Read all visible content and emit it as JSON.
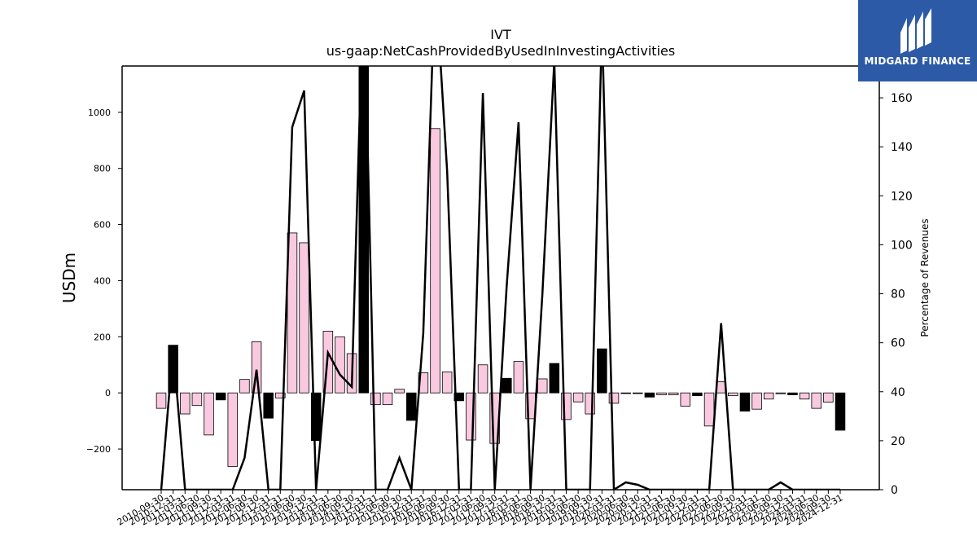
{
  "chart_data": {
    "type": "bar",
    "title": "IVT",
    "subtitle": "us-gaap:NetCashProvidedByUsedInInvestingActivities",
    "ylabel": "USDm",
    "y2label": "Percentage of Revenues",
    "ylim": [
      -345,
      1165
    ],
    "y2lim": [
      0,
      173
    ],
    "yticks": [
      -200,
      0,
      200,
      400,
      600,
      800,
      1000
    ],
    "y2ticks": [
      0,
      20,
      40,
      60,
      80,
      100,
      120,
      140,
      160
    ],
    "tick_labels": [
      "2010-09-30",
      "2010-12-31",
      "2011-03-31",
      "2011-06-30",
      "2011-09-30",
      "2011-12-31",
      "2012-03-31",
      "2012-06-30",
      "2012-09-30",
      "2012-12-31",
      "2013-03-31",
      "2013-06-30",
      "2013-09-30",
      "2013-12-31",
      "2014-03-31",
      "2014-06-30",
      "2014-09-30",
      "2014-12-31",
      "2015-03-31",
      "2015-06-30",
      "2015-09-30",
      "2015-12-31",
      "2016-03-31",
      "2016-06-30",
      "2016-09-30",
      "2016-12-31",
      "2017-03-31",
      "2017-06-30",
      "2017-09-30",
      "2017-12-31",
      "2018-03-31",
      "2018-06-30",
      "2018-09-30",
      "2018-12-31",
      "2019-03-31",
      "2019-06-30",
      "2019-09-30",
      "2019-12-31",
      "2020-03-31",
      "2020-06-30",
      "2020-09-30",
      "2020-12-31",
      "2021-03-31",
      "2021-06-30",
      "2021-09-30",
      "2021-12-31",
      "2022-03-31",
      "2022-06-30",
      "2022-09-30",
      "2022-12-31",
      "2023-03-31",
      "2023-06-30",
      "2023-09-30",
      "2023-12-31",
      "2024-03-31",
      "2024-06-30",
      "2024-09-30",
      "2024-12-31"
    ],
    "values": [
      -55,
      170,
      -75,
      -45,
      -150,
      -25,
      -262,
      48,
      182,
      -90,
      -18,
      570,
      535,
      -170,
      220,
      200,
      140,
      1165,
      -42,
      -42,
      13,
      -98,
      72,
      942,
      75,
      -28,
      -168,
      100,
      -180,
      52,
      112,
      -92,
      50,
      105,
      -95,
      -32,
      -75,
      157,
      -37,
      -2,
      -2,
      -15,
      -7,
      -7,
      -47,
      -10,
      -118,
      40,
      -10,
      -65,
      -58,
      -22,
      -3,
      -7,
      -22,
      -55,
      -33,
      -133
    ],
    "bar_colors": [
      "pink",
      "black",
      "pink",
      "pink",
      "pink",
      "black",
      "pink",
      "pink",
      "pink",
      "black",
      "pink",
      "pink",
      "pink",
      "black",
      "pink",
      "pink",
      "pink",
      "black",
      "pink",
      "pink",
      "pink",
      "black",
      "pink",
      "pink",
      "pink",
      "black",
      "pink",
      "pink",
      "pink",
      "black",
      "pink",
      "pink",
      "pink",
      "black",
      "pink",
      "pink",
      "pink",
      "black",
      "pink",
      "pink",
      "pink",
      "black",
      "pink",
      "pink",
      "pink",
      "black",
      "pink",
      "pink",
      "pink",
      "black",
      "pink",
      "pink",
      "pink",
      "black",
      "pink",
      "pink",
      "pink",
      "black"
    ],
    "series": [
      {
        "type": "line",
        "axis": "right",
        "color": "#000000",
        "values": [
          0,
          58,
          0,
          0,
          0,
          0,
          0,
          13,
          49,
          0,
          0,
          148,
          163,
          0,
          56,
          47,
          42,
          210,
          0,
          0,
          13,
          0,
          64,
          210,
          130,
          0,
          0,
          162,
          0,
          83,
          150,
          0,
          80,
          175,
          0,
          0,
          0,
          190,
          0,
          3,
          2,
          0,
          0,
          0,
          0,
          0,
          0,
          68,
          0,
          0,
          0,
          0,
          3,
          0,
          0,
          0,
          0,
          0
        ]
      }
    ],
    "colors": {
      "pink": "#f9c9e0",
      "black": "#000000",
      "line": "#000000"
    },
    "grid": false,
    "legend": "none"
  },
  "logo": {
    "text": "MIDGARD FINANCE",
    "bg_color": "#2d5aa6",
    "icon": "midgard-logo-icon"
  }
}
